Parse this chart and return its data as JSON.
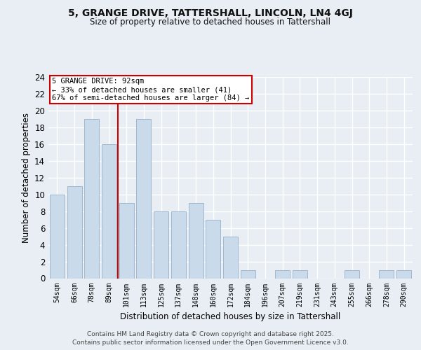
{
  "title1": "5, GRANGE DRIVE, TATTERSHALL, LINCOLN, LN4 4GJ",
  "title2": "Size of property relative to detached houses in Tattershall",
  "xlabel": "Distribution of detached houses by size in Tattershall",
  "ylabel": "Number of detached properties",
  "categories": [
    "54sqm",
    "66sqm",
    "78sqm",
    "89sqm",
    "101sqm",
    "113sqm",
    "125sqm",
    "137sqm",
    "148sqm",
    "160sqm",
    "172sqm",
    "184sqm",
    "196sqm",
    "207sqm",
    "219sqm",
    "231sqm",
    "243sqm",
    "255sqm",
    "266sqm",
    "278sqm",
    "290sqm"
  ],
  "values": [
    10,
    11,
    19,
    16,
    9,
    19,
    8,
    8,
    9,
    7,
    5,
    1,
    0,
    1,
    1,
    0,
    0,
    1,
    0,
    1,
    1
  ],
  "bar_color": "#c9daea",
  "bar_edge_color": "#a0b8d0",
  "vline_x": 3.5,
  "vline_color": "#cc0000",
  "annotation_title": "5 GRANGE DRIVE: 92sqm",
  "annotation_line1": "← 33% of detached houses are smaller (41)",
  "annotation_line2": "67% of semi-detached houses are larger (84) →",
  "annotation_box_color": "#ffffff",
  "annotation_box_edge": "#cc0000",
  "ylim": [
    0,
    24
  ],
  "yticks": [
    0,
    2,
    4,
    6,
    8,
    10,
    12,
    14,
    16,
    18,
    20,
    22,
    24
  ],
  "footer1": "Contains HM Land Registry data © Crown copyright and database right 2025.",
  "footer2": "Contains public sector information licensed under the Open Government Licence v3.0.",
  "bg_color": "#e8eef4",
  "plot_bg_color": "#e8eef4",
  "grid_color": "#ffffff"
}
